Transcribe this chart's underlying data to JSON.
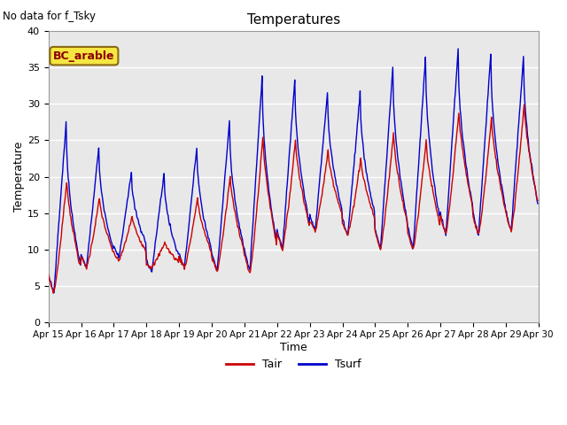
{
  "title": "Temperatures",
  "xlabel": "Time",
  "ylabel": "Temperature",
  "annotation": "No data for f_Tsky",
  "legend_label": "BC_arable",
  "ylim": [
    0,
    40
  ],
  "yticks": [
    0,
    5,
    10,
    15,
    20,
    25,
    30,
    35,
    40
  ],
  "xtick_labels": [
    "Apr 15",
    "Apr 16",
    "Apr 17",
    "Apr 18",
    "Apr 19",
    "Apr 20",
    "Apr 21",
    "Apr 22",
    "Apr 23",
    "Apr 24",
    "Apr 25",
    "Apr 26",
    "Apr 27",
    "Apr 28",
    "Apr 29",
    "Apr 30"
  ],
  "tair_color": "#cc0000",
  "tsurf_color": "#0000cc",
  "background_color": "#e8e8e8",
  "title_fontsize": 11,
  "axis_fontsize": 9,
  "legend_fontsize": 9,
  "tair_daily_max": [
    19.5,
    17.0,
    14.5,
    11.0,
    17.0,
    20.0,
    25.5,
    25.0,
    23.5,
    22.5,
    26.0,
    25.0,
    29.0,
    28.0,
    30.0
  ],
  "tair_daily_min": [
    4.0,
    7.5,
    8.5,
    7.5,
    7.5,
    7.0,
    6.5,
    10.0,
    12.5,
    12.0,
    10.0,
    10.0,
    12.0,
    12.0,
    12.5
  ],
  "tsurf_daily_max": [
    27.5,
    24.0,
    20.5,
    20.5,
    24.0,
    27.5,
    33.5,
    33.5,
    31.5,
    31.5,
    35.0,
    36.5,
    37.5,
    37.0,
    36.5
  ],
  "tsurf_daily_min": [
    4.0,
    7.5,
    9.0,
    7.0,
    7.5,
    7.0,
    7.0,
    10.0,
    12.5,
    12.0,
    10.0,
    10.0,
    12.0,
    12.0,
    12.5
  ]
}
